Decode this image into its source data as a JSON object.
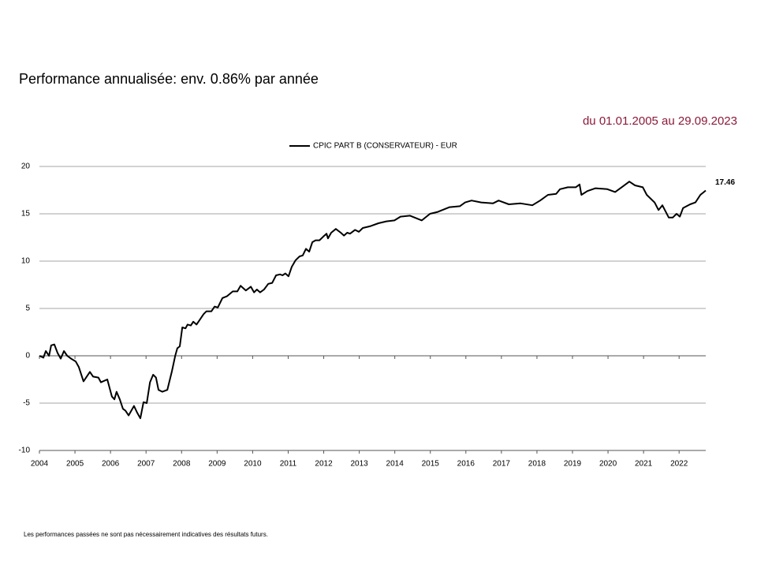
{
  "chart_data": {
    "type": "line",
    "title": "Performance annualisée: env. 0.86% par année",
    "subtitle": "du 01.01.2005 au 29.09.2023",
    "footnote": "Les performances passées ne sont pas nécessairement indicatives des résultats futurs.",
    "legend": "top",
    "grid": true,
    "xlim": [
      2004,
      2022.75
    ],
    "xticks": [
      2004,
      2005,
      2006,
      2007,
      2008,
      2009,
      2010,
      2011,
      2012,
      2013,
      2014,
      2015,
      2016,
      2017,
      2018,
      2019,
      2020,
      2021,
      2022
    ],
    "ylim": [
      -10,
      20
    ],
    "yticks": [
      -10,
      -5,
      0,
      5,
      10,
      15,
      20
    ],
    "x": [
      2004.0,
      2004.11,
      2004.18,
      2004.27,
      2004.33,
      2004.42,
      2004.51,
      2004.6,
      2004.69,
      2004.78,
      2004.89,
      2005.02,
      2005.11,
      2005.24,
      2005.42,
      2005.51,
      2005.66,
      2005.73,
      2005.91,
      2006.04,
      2006.11,
      2006.17,
      2006.26,
      2006.35,
      2006.42,
      2006.51,
      2006.66,
      2006.75,
      2006.84,
      2006.93,
      2007.02,
      2007.11,
      2007.2,
      2007.28,
      2007.35,
      2007.46,
      2007.6,
      2007.73,
      2007.82,
      2007.88,
      2007.95,
      2008.02,
      2008.11,
      2008.17,
      2008.26,
      2008.33,
      2008.42,
      2008.51,
      2008.62,
      2008.7,
      2008.84,
      2008.93,
      2009.02,
      2009.15,
      2009.28,
      2009.44,
      2009.57,
      2009.66,
      2009.81,
      2009.95,
      2010.04,
      2010.12,
      2010.21,
      2010.32,
      2010.44,
      2010.55,
      2010.66,
      2010.77,
      2010.84,
      2010.92,
      2011.01,
      2011.1,
      2011.21,
      2011.32,
      2011.41,
      2011.5,
      2011.59,
      2011.68,
      2011.77,
      2011.88,
      2011.99,
      2012.08,
      2012.12,
      2012.21,
      2012.34,
      2012.48,
      2012.57,
      2012.66,
      2012.74,
      2012.88,
      2012.99,
      2013.1,
      2013.32,
      2013.54,
      2013.76,
      2013.99,
      2014.16,
      2014.43,
      2014.76,
      2014.99,
      2015.21,
      2015.54,
      2015.83,
      2015.98,
      2016.16,
      2016.43,
      2016.76,
      2016.92,
      2017.21,
      2017.54,
      2017.87,
      2018.09,
      2018.31,
      2018.54,
      2018.65,
      2018.87,
      2019.09,
      2019.2,
      2019.25,
      2019.42,
      2019.65,
      2019.98,
      2020.2,
      2020.42,
      2020.6,
      2020.76,
      2020.98,
      2021.09,
      2021.31,
      2021.42,
      2021.53,
      2021.71,
      2021.82,
      2021.93,
      2022.02,
      2022.11,
      2022.31,
      2022.46,
      2022.6,
      2022.75
    ],
    "series": [
      {
        "name": "CPIC PART B (CONSERVATEUR) - EUR",
        "color": "#000000",
        "values": [
          0,
          -0.2,
          0.5,
          0,
          1.1,
          1.2,
          0.3,
          -0.3,
          0.5,
          0,
          -0.3,
          -0.6,
          -1.2,
          -2.7,
          -1.7,
          -2.2,
          -2.3,
          -2.8,
          -2.5,
          -4.3,
          -4.6,
          -3.8,
          -4.6,
          -5.6,
          -5.8,
          -6.3,
          -5.3,
          -6.0,
          -6.6,
          -4.9,
          -5.0,
          -2.8,
          -2.0,
          -2.3,
          -3.6,
          -3.8,
          -3.6,
          -1.6,
          0,
          0.8,
          1.0,
          3.0,
          2.9,
          3.3,
          3.2,
          3.6,
          3.3,
          3.8,
          4.4,
          4.7,
          4.7,
          5.2,
          5.1,
          6.1,
          6.3,
          6.8,
          6.8,
          7.4,
          6.9,
          7.3,
          6.7,
          7.0,
          6.7,
          7.0,
          7.6,
          7.7,
          8.5,
          8.6,
          8.5,
          8.7,
          8.4,
          9.4,
          10.1,
          10.5,
          10.6,
          11.3,
          11.0,
          12.0,
          12.2,
          12.2,
          12.6,
          12.9,
          12.4,
          13.0,
          13.4,
          13.0,
          12.7,
          13.0,
          12.9,
          13.3,
          13.1,
          13.5,
          13.7,
          14.0,
          14.2,
          14.3,
          14.7,
          14.8,
          14.3,
          15.0,
          15.2,
          15.7,
          15.8,
          16.2,
          16.4,
          16.2,
          16.1,
          16.4,
          16.0,
          16.1,
          15.9,
          16.4,
          17.0,
          17.1,
          17.6,
          17.8,
          17.8,
          18.1,
          17.0,
          17.4,
          17.7,
          17.6,
          17.3,
          17.9,
          18.4,
          18.0,
          17.8,
          17.0,
          16.2,
          15.4,
          15.9,
          14.6,
          14.6,
          15.0,
          14.7,
          15.6,
          16.0,
          16.2,
          17.0,
          17.46
        ]
      }
    ]
  }
}
